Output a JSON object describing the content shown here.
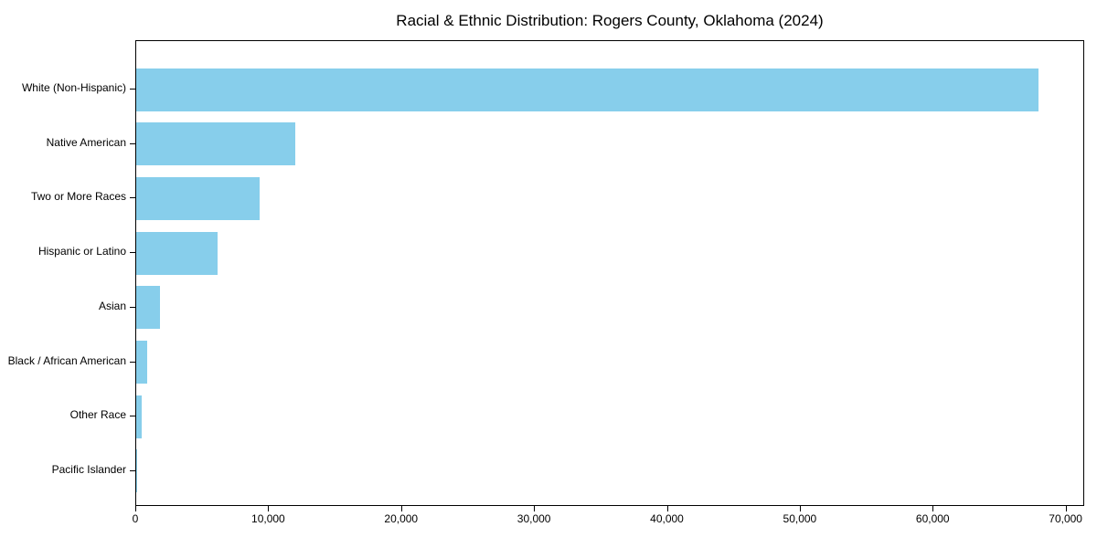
{
  "chart_data": {
    "type": "bar",
    "orientation": "horizontal",
    "title": "Racial & Ethnic Distribution: Rogers County, Oklahoma (2024)",
    "categories": [
      "White (Non-Hispanic)",
      "Native American",
      "Two or More Races",
      "Hispanic or Latino",
      "Asian",
      "Black / African American",
      "Other Race",
      "Pacific Islander"
    ],
    "values": [
      68000,
      12000,
      9300,
      6100,
      1800,
      850,
      400,
      50
    ],
    "xlabel": "",
    "ylabel": "",
    "xlim": [
      0,
      71400
    ],
    "x_ticks": [
      0,
      10000,
      20000,
      30000,
      40000,
      50000,
      60000,
      70000
    ],
    "x_tick_labels": [
      "0",
      "10,000",
      "20,000",
      "30,000",
      "40,000",
      "50,000",
      "60,000",
      "70,000"
    ],
    "bar_color": "#87CEEB",
    "grid": false,
    "legend": "none",
    "background_color": "#ffffff",
    "spine_color": "#000000"
  }
}
